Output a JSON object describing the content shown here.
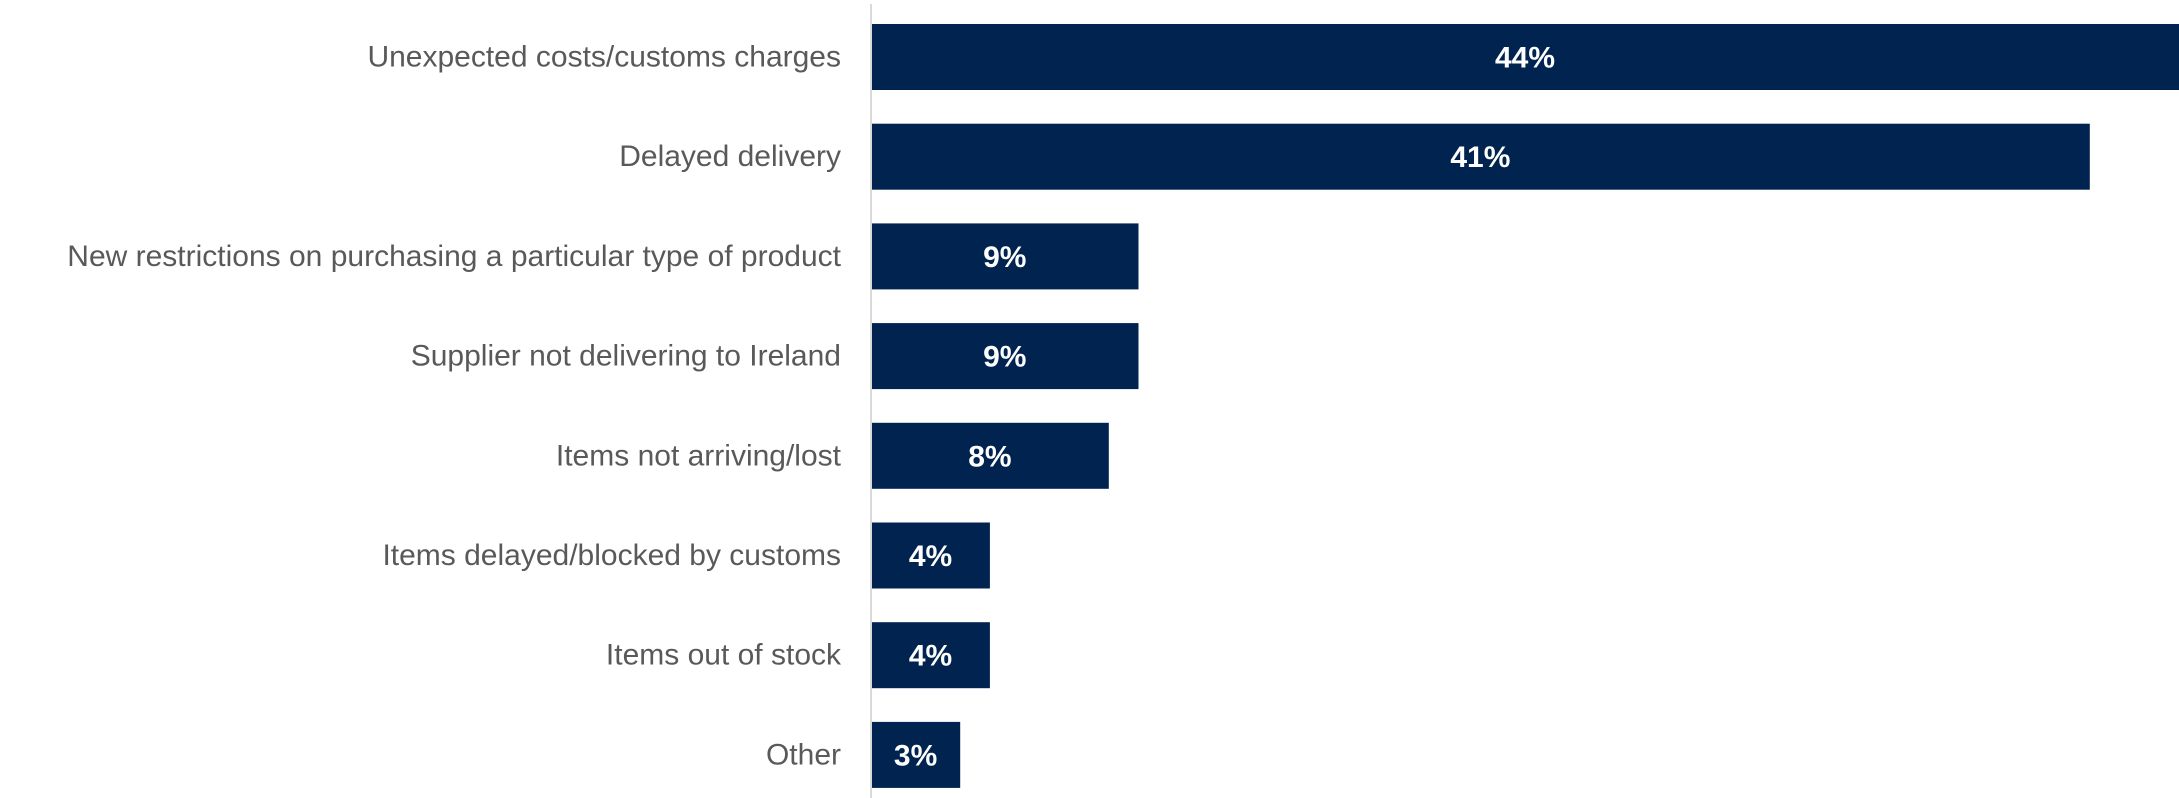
{
  "chart_data": {
    "type": "bar",
    "orientation": "horizontal",
    "categories": [
      "Unexpected costs/customs charges",
      "Delayed delivery",
      "New restrictions on purchasing a particular type of product",
      "Supplier not delivering to Ireland",
      "Items not arriving/lost",
      "Items delayed/blocked by customs",
      "Items out of stock",
      "Other"
    ],
    "values": [
      44,
      41,
      9,
      9,
      8,
      4,
      4,
      3
    ],
    "data_labels": [
      "44%",
      "41%",
      "9%",
      "9%",
      "8%",
      "4%",
      "4%",
      "3%"
    ],
    "unit": "%",
    "xlim": [
      0,
      44
    ],
    "grid": false,
    "legend": "none",
    "bar_color": "#00234f",
    "axis_color": "#d9d9d9",
    "label_color": "#595959",
    "value_label_color": "#ffffff"
  }
}
